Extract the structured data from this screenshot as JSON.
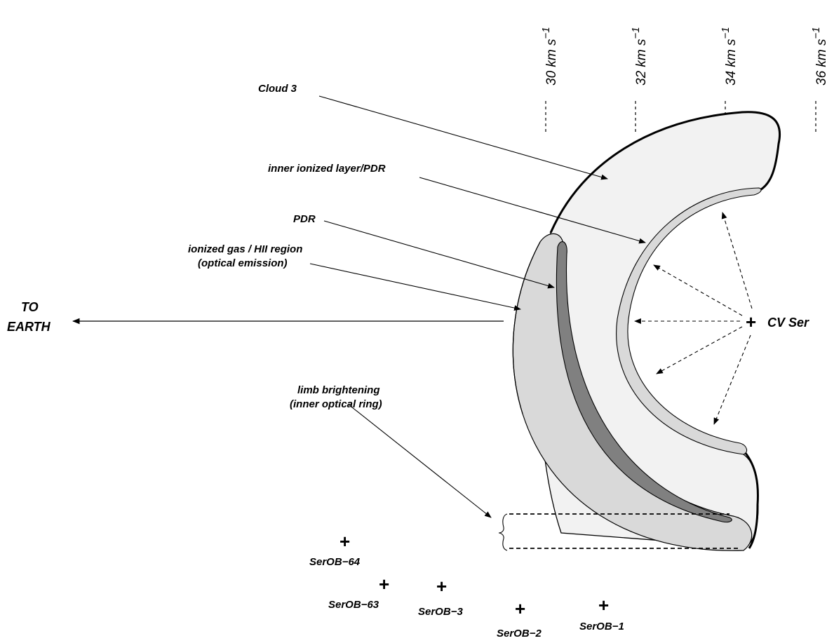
{
  "labels": {
    "cloud3": "Cloud 3",
    "inner_layer": "inner ionized layer/PDR",
    "pdr": "PDR",
    "ionized_line1": "ionized gas / HII region",
    "ionized_line2": "(optical emission)",
    "to": "TO",
    "earth": "EARTH",
    "cv_ser": "CV Ser",
    "limb_line1": "limb brightening",
    "limb_line2": "(inner optical ring)"
  },
  "velocity_ticks": [
    {
      "text": "30 km s",
      "exp": "−1"
    },
    {
      "text": "32 km s",
      "exp": "−1"
    },
    {
      "text": "34 km s",
      "exp": "−1"
    },
    {
      "text": "36 km s",
      "exp": "−1"
    }
  ],
  "stars": [
    "SerOB−64",
    "SerOB−63",
    "SerOB−3",
    "SerOB−2",
    "SerOB−1"
  ],
  "colors": {
    "outer_cloud": "#f2f2f2",
    "ionized_shell": "#d9d9d9",
    "pdr": "#808080",
    "inner_layer": "#d9d9d9",
    "stroke": "#000000"
  }
}
